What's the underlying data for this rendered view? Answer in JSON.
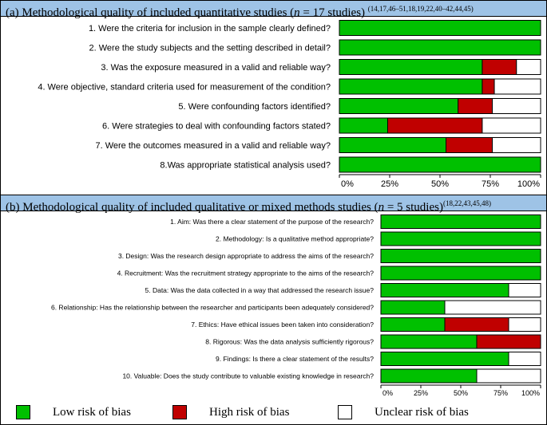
{
  "colors": {
    "low": "#00c000",
    "high": "#c00000",
    "unclear": "#ffffff",
    "header_bg": "#9ec3e6"
  },
  "header_a": {
    "prefix": "(a) Methodological quality of included quantitative studies (",
    "n": "n",
    "suffix": " = 17 studies)",
    "refs": "(14,17,46–51,18,19,22,40–42,44,45)"
  },
  "header_b": {
    "prefix": "(b) Methodological quality of included qualitative or mixed methods studies (",
    "n": "n",
    "suffix": " = 5 studies)",
    "refs": "(18,22,43,45,48)"
  },
  "legend": {
    "low": "Low risk of bias",
    "high": "High risk of bias",
    "unclear": "Unclear risk of bias"
  },
  "chart_data": [
    {
      "type": "bar",
      "orientation": "horizontal",
      "stacked": true,
      "xlim": [
        0,
        100
      ],
      "ticks": [
        "0%",
        "25%",
        "50%",
        "75%",
        "100%"
      ],
      "categories": [
        "1. Were the criteria for inclusion in the sample clearly defined?",
        "2. Were the study subjects and the setting described in detail?",
        "3. Was the exposure measured in a valid and reliable way?",
        "4. Were objective, standard criteria used for measurement of the condition?",
        "5. Were confounding factors identified?",
        "6. Were strategies to deal with confounding factors stated?",
        "7. Were the outcomes measured in a valid and reliable way?",
        "8.Was appropriate statistical analysis used?"
      ],
      "series": [
        {
          "name": "Low risk of bias",
          "values": [
            100,
            100,
            71,
            71,
            59,
            24,
            53,
            100
          ]
        },
        {
          "name": "High risk of bias",
          "values": [
            0,
            0,
            17,
            6,
            17,
            47,
            23,
            0
          ]
        },
        {
          "name": "Unclear risk of bias",
          "values": [
            0,
            0,
            12,
            23,
            24,
            29,
            24,
            0
          ]
        }
      ]
    },
    {
      "type": "bar",
      "orientation": "horizontal",
      "stacked": true,
      "xlim": [
        0,
        100
      ],
      "ticks": [
        "0%",
        "25%",
        "50%",
        "75%",
        "100%"
      ],
      "categories": [
        "1. Aim: Was there a clear statement of the purpose of the research?",
        "2. Methodology: Is a qualitative method appropriate?",
        "3. Design: Was the research design appropriate to address the aims of the research?",
        "4. Recruitment: Was the recruitment strategy appropriate to the aims of the research?",
        "5. Data: Was the data collected in a way that addressed the research issue?",
        "6. Relationship: Has the relationship between the researcher and participants been adequately considered?",
        "7. Ethics: Have ethical issues been taken into consideration?",
        "8. Rigorous: Was the data analysis sufficiently rigorous?",
        "9. Findings: Is there a clear statement of the results?",
        "10. Valuable: Does the study contribute to valuable existing knowledge in research?"
      ],
      "series": [
        {
          "name": "Low risk of bias",
          "values": [
            100,
            100,
            100,
            100,
            80,
            40,
            40,
            60,
            80,
            60
          ]
        },
        {
          "name": "High risk of bias",
          "values": [
            0,
            0,
            0,
            0,
            0,
            0,
            40,
            40,
            0,
            0
          ]
        },
        {
          "name": "Unclear risk of bias",
          "values": [
            0,
            0,
            0,
            0,
            20,
            60,
            20,
            0,
            20,
            40
          ]
        }
      ]
    }
  ]
}
